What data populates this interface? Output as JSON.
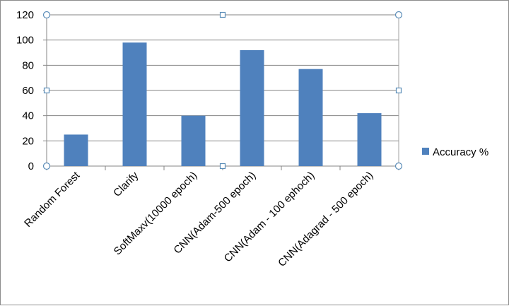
{
  "chart_data": {
    "type": "bar",
    "categories": [
      "Random Forest",
      "Clarify",
      "SoftMaxv(10000 epoch)",
      "CNN(Adam-500 epoch)",
      "CNN(Adam - 100 ephoch)",
      "CNN(Adagrad - 500 epoch)"
    ],
    "series": [
      {
        "name": "Accuracy %",
        "values": [
          25,
          98,
          40,
          92,
          77,
          42
        ],
        "color": "#4f81bd"
      }
    ],
    "title": "",
    "xlabel": "",
    "ylabel": "",
    "ylim": [
      0,
      120
    ],
    "yticks": [
      0,
      20,
      40,
      60,
      80,
      100,
      120
    ],
    "grid": true,
    "legend_position": "right"
  }
}
